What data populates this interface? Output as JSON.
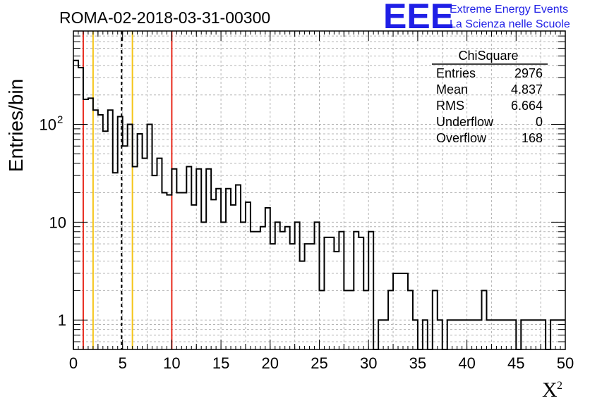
{
  "header": {
    "run_title": "ROMA-02-2018-03-31-00300",
    "logo_text": "EEE",
    "logo_line1": "Extreme Energy Events",
    "logo_line2": "La Scienza nelle Scuole"
  },
  "stats_box": {
    "name": "ChiSquare",
    "rows": [
      {
        "label": "Entries",
        "value": "2976"
      },
      {
        "label": "Mean",
        "value": "4.837"
      },
      {
        "label": "RMS",
        "value": "6.664"
      },
      {
        "label": "Underflow",
        "value": "0"
      },
      {
        "label": "Overflow",
        "value": "168"
      }
    ]
  },
  "chart_data": {
    "type": "histogram",
    "title": "ROMA-02-2018-03-31-00300",
    "xlabel": "X",
    "xlabel_superscript": "2",
    "ylabel": "Entries/bin",
    "xlim": [
      0,
      50
    ],
    "ylim": [
      0.5,
      900
    ],
    "yscale": "log",
    "grid": true,
    "bin_width": 0.5,
    "x_ticks": [
      "0",
      "5",
      "10",
      "15",
      "20",
      "25",
      "30",
      "35",
      "40",
      "45",
      "50"
    ],
    "y_tick_labels": [
      {
        "value": 1,
        "label": "1"
      },
      {
        "value": 10,
        "label": "10"
      },
      {
        "value": 100,
        "label": "10",
        "exponent": "2"
      }
    ],
    "bin_values": [
      450,
      380,
      180,
      185,
      140,
      125,
      85,
      140,
      32,
      120,
      60,
      100,
      37,
      80,
      45,
      100,
      30,
      45,
      20,
      19,
      35,
      20,
      20,
      37,
      15,
      35,
      10,
      35,
      17,
      22,
      10,
      22,
      15,
      24,
      10,
      16,
      8,
      8,
      9,
      14,
      6,
      10,
      8,
      9,
      6,
      10,
      4,
      6,
      6,
      10,
      2,
      7,
      7,
      5,
      8,
      2,
      2,
      8,
      7,
      2,
      8,
      0,
      1,
      1,
      2,
      3,
      3,
      3,
      2,
      1,
      0,
      1,
      0,
      2,
      1,
      0,
      1,
      1,
      1,
      1,
      1,
      1,
      1,
      2,
      1,
      1,
      1,
      1,
      1,
      1,
      0,
      1,
      1,
      1,
      1,
      1,
      0,
      1,
      1,
      1
    ],
    "vertical_lines": [
      {
        "x": 1,
        "color": "#e8291c",
        "style": "solid"
      },
      {
        "x": 2,
        "color": "#f5c518",
        "style": "solid"
      },
      {
        "x": 4.9,
        "color": "#000000",
        "style": "dashed"
      },
      {
        "x": 6,
        "color": "#f5c518",
        "style": "solid"
      },
      {
        "x": 10,
        "color": "#e8291c",
        "style": "solid"
      }
    ]
  }
}
